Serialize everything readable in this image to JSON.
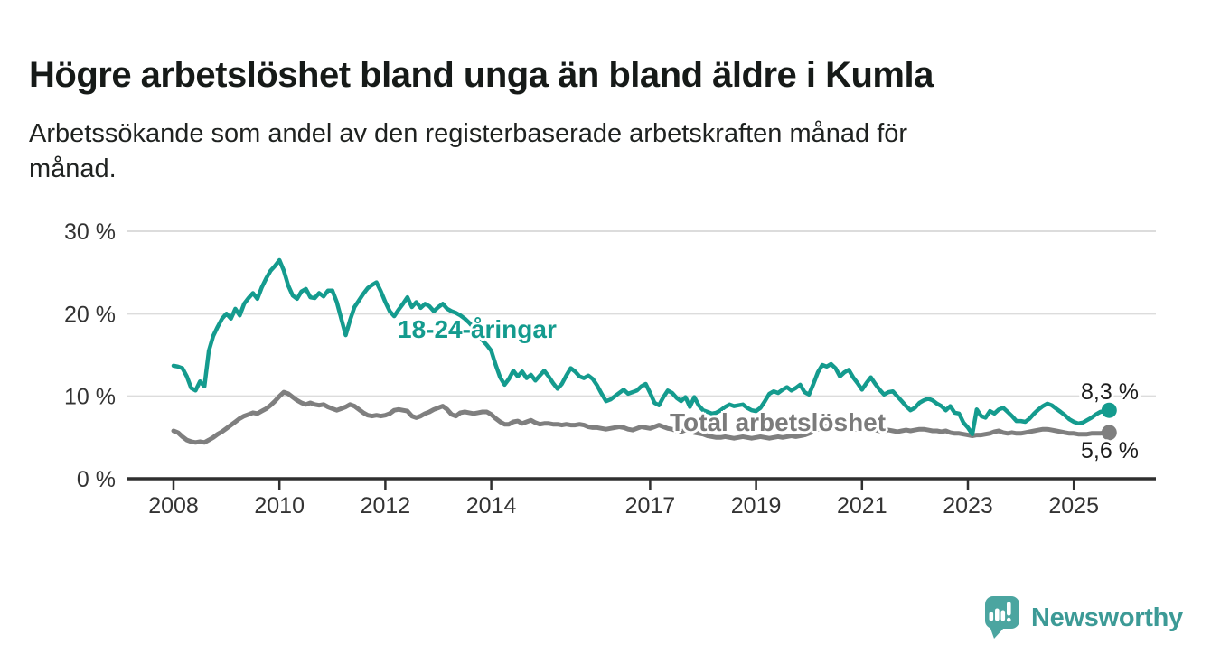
{
  "header": {
    "title": "Högre arbetslöshet bland unga än bland äldre i Kumla",
    "subtitle": "Arbetssökande som andel av den registerbaserade arbetskraften månad för månad.",
    "subtitle_lines": [
      "Arbetssökande som andel av den registerbaserade arbetskraften månad för",
      "månad."
    ]
  },
  "chart_data": {
    "type": "line",
    "title": "Högre arbetslöshet bland unga än bland äldre i Kumla",
    "subtitle": "Arbetssökande som andel av den registerbaserade arbetskraften månad för månad.",
    "x_unit": "month",
    "x_start": 2008,
    "period": "2008-01 to 2025-09",
    "x_ticks": [
      "2008",
      "2010",
      "2012",
      "2014",
      "2017",
      "2019",
      "2021",
      "2023",
      "2025"
    ],
    "y_ticks": [
      "30 %",
      "20 %",
      "10 %",
      "0 %"
    ],
    "y_tick_values": [
      30,
      20,
      10,
      0
    ],
    "ylim": [
      0,
      32
    ],
    "grid": "horizontal",
    "legend_position": "inline-labels",
    "series": [
      {
        "name": "18-24-åringar",
        "color": "#149b8e",
        "end_label": "8,3 %",
        "end_value": 8.3,
        "values": [
          13.7,
          13.6,
          13.4,
          12.4,
          11.0,
          10.7,
          11.8,
          11.2,
          15.5,
          17.3,
          18.4,
          19.4,
          20.0,
          19.4,
          20.6,
          19.8,
          21.2,
          21.9,
          22.5,
          21.8,
          23.2,
          24.3,
          25.2,
          25.8,
          26.5,
          25.2,
          23.4,
          22.2,
          21.8,
          22.7,
          23.0,
          22.0,
          21.9,
          22.5,
          22.1,
          22.8,
          22.8,
          21.4,
          19.4,
          17.4,
          19.2,
          20.8,
          21.6,
          22.4,
          23.1,
          23.5,
          23.8,
          22.7,
          21.4,
          20.3,
          19.7,
          20.5,
          21.2,
          22.0,
          20.8,
          21.4,
          20.7,
          21.2,
          20.9,
          20.3,
          20.8,
          21.2,
          20.6,
          20.3,
          20.1,
          19.8,
          19.4,
          18.9,
          18.3,
          17.6,
          16.8,
          16.2,
          15.5,
          13.8,
          12.3,
          11.4,
          12.1,
          13.1,
          12.4,
          13.0,
          12.2,
          12.6,
          11.9,
          12.5,
          13.1,
          12.4,
          11.6,
          10.9,
          11.5,
          12.5,
          13.4,
          13.0,
          12.4,
          12.2,
          12.5,
          12.1,
          11.3,
          10.3,
          9.4,
          9.6,
          10.0,
          10.4,
          10.8,
          10.3,
          10.5,
          10.7,
          11.2,
          11.5,
          10.4,
          9.2,
          8.9,
          9.9,
          10.7,
          10.4,
          9.8,
          9.4,
          9.9,
          8.7,
          9.9,
          8.9,
          8.3,
          8.1,
          7.9,
          8.0,
          8.3,
          8.7,
          9.0,
          8.8,
          8.9,
          9.0,
          8.6,
          8.3,
          8.2,
          8.6,
          9.4,
          10.3,
          10.6,
          10.4,
          10.8,
          11.1,
          10.7,
          11.0,
          11.4,
          10.5,
          10.2,
          11.5,
          12.9,
          13.8,
          13.6,
          13.9,
          13.4,
          12.4,
          12.9,
          13.2,
          12.3,
          11.6,
          10.8,
          11.6,
          12.3,
          11.5,
          10.8,
          10.2,
          10.5,
          10.6,
          10.0,
          9.4,
          8.8,
          8.3,
          8.6,
          9.2,
          9.5,
          9.7,
          9.5,
          9.1,
          8.8,
          8.3,
          8.8,
          8.0,
          7.9,
          6.8,
          6.2,
          5.4,
          8.4,
          7.6,
          7.4,
          8.2,
          7.9,
          8.4,
          8.6,
          8.1,
          7.6,
          7.0,
          7.0,
          6.9,
          7.3,
          7.9,
          8.4,
          8.8,
          9.1,
          8.9,
          8.5,
          8.1,
          7.7,
          7.2,
          6.9,
          6.7,
          6.8,
          7.1,
          7.4,
          7.8,
          8.1,
          8.2,
          8.3
        ]
      },
      {
        "name": "Total arbetslöshet",
        "color": "#7f7f7f",
        "end_label": "5,6 %",
        "end_value": 5.6,
        "values": [
          5.8,
          5.6,
          5.1,
          4.7,
          4.5,
          4.4,
          4.5,
          4.4,
          4.7,
          5.0,
          5.4,
          5.7,
          6.1,
          6.5,
          6.9,
          7.3,
          7.6,
          7.8,
          8.0,
          7.9,
          8.2,
          8.5,
          8.9,
          9.4,
          10.0,
          10.5,
          10.3,
          9.9,
          9.5,
          9.2,
          9.0,
          9.2,
          9.0,
          8.9,
          9.0,
          8.7,
          8.5,
          8.3,
          8.5,
          8.7,
          9.0,
          8.8,
          8.4,
          8.0,
          7.7,
          7.6,
          7.7,
          7.6,
          7.7,
          7.9,
          8.3,
          8.4,
          8.3,
          8.2,
          7.6,
          7.4,
          7.6,
          7.9,
          8.1,
          8.4,
          8.6,
          8.8,
          8.4,
          7.8,
          7.6,
          8.0,
          8.1,
          8.0,
          7.9,
          8.0,
          8.1,
          8.1,
          7.8,
          7.3,
          6.9,
          6.6,
          6.6,
          6.9,
          7.0,
          6.7,
          6.9,
          7.1,
          6.8,
          6.6,
          6.7,
          6.7,
          6.6,
          6.6,
          6.5,
          6.6,
          6.5,
          6.5,
          6.6,
          6.5,
          6.3,
          6.2,
          6.2,
          6.1,
          6.0,
          6.1,
          6.2,
          6.3,
          6.2,
          6.0,
          5.9,
          6.1,
          6.3,
          6.2,
          6.1,
          6.3,
          6.5,
          6.3,
          6.1,
          6.0,
          5.8,
          5.7,
          5.9,
          5.8,
          5.6,
          5.5,
          5.4,
          5.2,
          5.1,
          5.0,
          5.0,
          5.1,
          5.0,
          4.9,
          5.0,
          5.1,
          5.0,
          4.9,
          5.0,
          5.1,
          5.0,
          4.9,
          5.0,
          5.1,
          5.0,
          5.1,
          5.2,
          5.1,
          5.2,
          5.3,
          5.5,
          5.7,
          6.0,
          6.3,
          6.4,
          6.4,
          6.3,
          6.2,
          6.3,
          6.2,
          6.1,
          6.0,
          6.1,
          6.0,
          6.0,
          5.9,
          5.8,
          5.8,
          5.9,
          5.8,
          5.7,
          5.8,
          5.9,
          5.8,
          5.9,
          6.0,
          6.0,
          5.9,
          5.8,
          5.8,
          5.7,
          5.8,
          5.6,
          5.5,
          5.5,
          5.4,
          5.3,
          5.2,
          5.3,
          5.3,
          5.4,
          5.5,
          5.7,
          5.8,
          5.6,
          5.5,
          5.6,
          5.5,
          5.5,
          5.6,
          5.7,
          5.8,
          5.9,
          6.0,
          6.0,
          5.9,
          5.8,
          5.7,
          5.6,
          5.5,
          5.5,
          5.4,
          5.4,
          5.4,
          5.5,
          5.5,
          5.5,
          5.6,
          5.6
        ]
      }
    ],
    "colors": {
      "youth_line": "#149b8e",
      "total_line": "#7f7f7f",
      "gridline": "#dcdcdc",
      "axis": "#2f2f2f",
      "tick_text": "#333333"
    }
  },
  "footer": {
    "brand": "Newsworthy",
    "brand_color": "#3c9a96",
    "icon": "newsworthy-speech-bubble-chart-icon",
    "icon_color": "#4ba5a0"
  }
}
